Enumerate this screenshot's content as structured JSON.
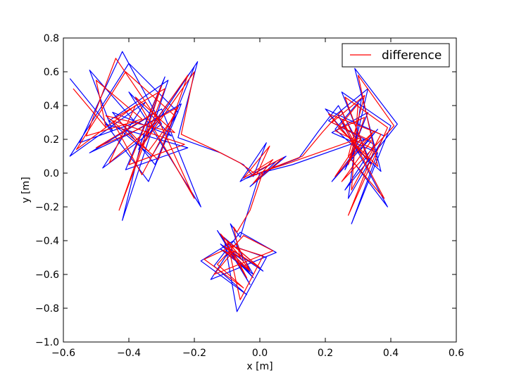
{
  "chart_data": {
    "type": "line",
    "xlabel": "x [m]",
    "ylabel": "y [m]",
    "xlim": [
      -0.6,
      0.6
    ],
    "ylim": [
      -1.0,
      0.8
    ],
    "xticks": [
      -0.6,
      -0.4,
      -0.2,
      0.0,
      0.2,
      0.4,
      0.6
    ],
    "yticks": [
      -1.0,
      -0.8,
      -0.6,
      -0.4,
      -0.2,
      0.0,
      0.2,
      0.4,
      0.6,
      0.8
    ],
    "xtick_labels": [
      "−0.6",
      "−0.4",
      "−0.2",
      "0.0",
      "0.2",
      "0.4",
      "0.6"
    ],
    "ytick_labels": [
      "−1.0",
      "−0.8",
      "−0.6",
      "−0.4",
      "−0.2",
      "0.0",
      "0.2",
      "0.4",
      "0.6",
      "0.8"
    ],
    "grid": false,
    "legend_position": "top-right",
    "legend": [
      "difference"
    ],
    "series": [
      {
        "color": "#0000ff",
        "x": [
          -0.58,
          -0.45,
          -0.52,
          -0.38,
          -0.55,
          -0.42,
          -0.3,
          -0.48,
          -0.35,
          -0.58,
          -0.4,
          -0.25,
          -0.33,
          -0.46,
          -0.28,
          -0.42,
          -0.36,
          -0.2,
          -0.32,
          -0.45,
          -0.27,
          -0.4,
          -0.18,
          -0.3,
          -0.52,
          -0.39,
          -0.24,
          -0.34,
          -0.47,
          -0.22,
          -0.41,
          -0.29,
          -0.37,
          -0.19,
          -0.25,
          -0.12,
          -0.05,
          -0.02,
          0.02,
          -0.06,
          0.05,
          -0.03,
          0.08,
          0.0,
          -0.04,
          0.12,
          0.18,
          0.24,
          0.3,
          0.26,
          0.33,
          0.22,
          0.36,
          0.28,
          0.4,
          0.25,
          0.34,
          0.2,
          0.38,
          0.27,
          0.31,
          0.23,
          0.37,
          0.29,
          0.42,
          0.26,
          0.35,
          0.21,
          0.33,
          0.28,
          0.39,
          0.24,
          0.3,
          0.36,
          0.22,
          0.32,
          0.1,
          0.0,
          -0.04,
          -0.06,
          -0.09,
          -0.05,
          -0.12,
          -0.02,
          -0.08,
          -0.13,
          -0.03,
          -0.1,
          0.02,
          -0.07,
          -0.11,
          0.01,
          -0.09,
          -0.15,
          0.05,
          -0.06,
          -0.14,
          -0.04,
          -0.18,
          -0.08,
          -0.02,
          -0.12,
          -0.07
        ],
        "y": [
          0.56,
          0.25,
          0.61,
          0.3,
          0.18,
          0.72,
          0.29,
          0.03,
          0.42,
          0.1,
          0.65,
          0.36,
          0.1,
          0.31,
          0.55,
          -0.28,
          0.2,
          0.63,
          0.05,
          0.36,
          0.22,
          0.48,
          -0.2,
          0.38,
          0.12,
          0.24,
          0.41,
          -0.05,
          0.29,
          0.15,
          0.02,
          0.57,
          0.14,
          0.66,
          0.21,
          0.12,
          0.05,
          -0.02,
          0.18,
          -0.05,
          0.07,
          -0.08,
          0.1,
          0.02,
          -0.03,
          0.09,
          0.25,
          0.4,
          0.18,
          0.02,
          0.36,
          0.24,
          0.12,
          -0.3,
          0.28,
          0.48,
          0.05,
          0.38,
          0.22,
          -0.15,
          0.44,
          0.26,
          0.01,
          0.62,
          0.29,
          -0.1,
          0.17,
          0.31,
          0.5,
          0.08,
          -0.2,
          0.34,
          0.12,
          0.26,
          -0.05,
          0.2,
          0.05,
          0.0,
          -0.25,
          -0.38,
          -0.3,
          -0.52,
          -0.42,
          -0.62,
          -0.48,
          -0.34,
          -0.66,
          -0.42,
          -0.5,
          -0.82,
          -0.38,
          -0.58,
          -0.45,
          -0.63,
          -0.47,
          -0.35,
          -0.55,
          -0.72,
          -0.52,
          -0.4,
          -0.6,
          -0.45,
          -0.5
        ]
      },
      {
        "name": "difference",
        "color": "#ff0000",
        "x": [
          -0.57,
          -0.47,
          -0.5,
          -0.36,
          -0.53,
          -0.44,
          -0.31,
          -0.46,
          -0.38,
          -0.56,
          -0.41,
          -0.26,
          -0.34,
          -0.44,
          -0.29,
          -0.43,
          -0.35,
          -0.22,
          -0.31,
          -0.47,
          -0.26,
          -0.38,
          -0.2,
          -0.32,
          -0.5,
          -0.37,
          -0.25,
          -0.36,
          -0.45,
          -0.23,
          -0.4,
          -0.3,
          -0.36,
          -0.2,
          -0.24,
          -0.13,
          -0.06,
          -0.01,
          0.03,
          -0.05,
          0.04,
          -0.02,
          0.07,
          0.01,
          -0.03,
          0.13,
          0.19,
          0.25,
          0.29,
          0.27,
          0.32,
          0.23,
          0.35,
          0.27,
          0.39,
          0.26,
          0.33,
          0.21,
          0.37,
          0.28,
          0.3,
          0.24,
          0.36,
          0.3,
          0.41,
          0.25,
          0.34,
          0.22,
          0.32,
          0.27,
          0.38,
          0.25,
          0.29,
          0.35,
          0.23,
          0.31,
          0.09,
          0.01,
          -0.03,
          -0.07,
          -0.08,
          -0.06,
          -0.11,
          -0.03,
          -0.07,
          -0.12,
          -0.04,
          -0.09,
          0.01,
          -0.06,
          -0.1,
          0.0,
          -0.08,
          -0.14,
          0.04,
          -0.05,
          -0.13,
          -0.05,
          -0.17,
          -0.07,
          -0.03,
          -0.11,
          -0.08
        ],
        "y": [
          0.5,
          0.27,
          0.55,
          0.32,
          0.22,
          0.68,
          0.31,
          0.06,
          0.4,
          0.14,
          0.6,
          0.34,
          0.13,
          0.33,
          0.5,
          -0.22,
          0.22,
          0.58,
          0.08,
          0.34,
          0.24,
          0.45,
          -0.15,
          0.36,
          0.15,
          0.26,
          0.39,
          -0.01,
          0.31,
          0.17,
          0.05,
          0.52,
          0.16,
          0.6,
          0.23,
          0.13,
          0.06,
          -0.01,
          0.16,
          -0.03,
          0.08,
          -0.06,
          0.09,
          0.03,
          -0.02,
          0.1,
          0.24,
          0.37,
          0.2,
          0.05,
          0.33,
          0.25,
          0.14,
          -0.25,
          0.27,
          0.45,
          0.08,
          0.35,
          0.23,
          -0.1,
          0.41,
          0.27,
          0.04,
          0.58,
          0.28,
          -0.05,
          0.19,
          0.3,
          0.46,
          0.1,
          -0.15,
          0.32,
          0.14,
          0.25,
          -0.02,
          0.21,
          0.06,
          0.01,
          -0.22,
          -0.35,
          -0.32,
          -0.5,
          -0.43,
          -0.58,
          -0.47,
          -0.36,
          -0.62,
          -0.43,
          -0.49,
          -0.75,
          -0.4,
          -0.56,
          -0.46,
          -0.6,
          -0.46,
          -0.37,
          -0.54,
          -0.68,
          -0.51,
          -0.42,
          -0.58,
          -0.46,
          -0.49
        ]
      }
    ]
  }
}
